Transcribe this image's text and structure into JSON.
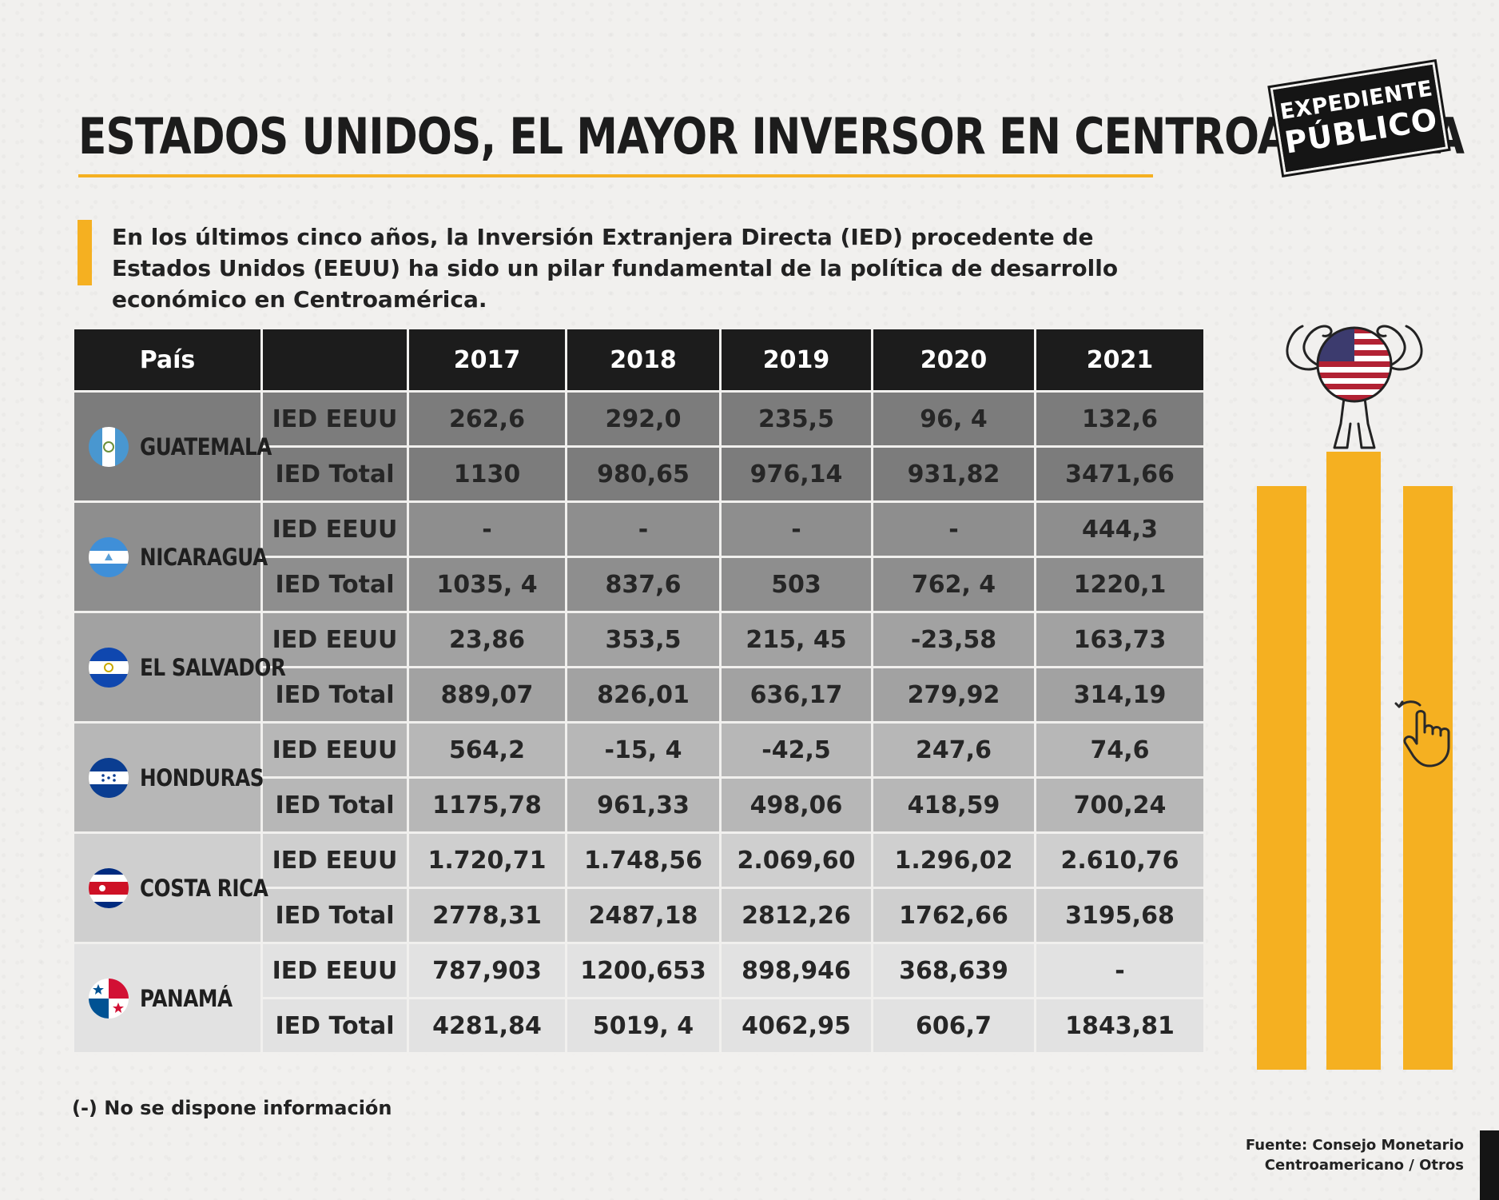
{
  "title": "ESTADOS UNIDOS, EL MAYOR INVERSOR EN CENTROAMÉRICA",
  "logo": {
    "line1": "EXPEDIENTE",
    "line2": "PÚBLICO"
  },
  "intro": "En los últimos cinco años, la Inversión Extranjera Directa (IED) procedente de Estados Unidos (EEUU) ha sido un pilar fundamental de la política de desarrollo económico en Centroamérica.",
  "table": {
    "header": {
      "country": "País",
      "metric": "",
      "years": [
        "2017",
        "2018",
        "2019",
        "2020",
        "2021"
      ]
    },
    "countries": [
      {
        "name": "GUATEMALA",
        "rows": [
          {
            "metric": "IED EEUU",
            "values": [
              "262,6",
              "292,0",
              "235,5",
              "96, 4",
              "132,6"
            ]
          },
          {
            "metric": "IED Total",
            "values": [
              "1130",
              "980,65",
              "976,14",
              "931,82",
              "3471,66"
            ]
          }
        ]
      },
      {
        "name": "NICARAGUA",
        "rows": [
          {
            "metric": "IED EEUU",
            "values": [
              "-",
              "-",
              "-",
              "-",
              "444,3"
            ]
          },
          {
            "metric": "IED Total",
            "values": [
              "1035, 4",
              "837,6",
              "503",
              "762, 4",
              "1220,1"
            ]
          }
        ]
      },
      {
        "name": "EL SALVADOR",
        "rows": [
          {
            "metric": "IED EEUU",
            "values": [
              "23,86",
              "353,5",
              "215, 45",
              "-23,58",
              "163,73"
            ]
          },
          {
            "metric": "IED Total",
            "values": [
              "889,07",
              "826,01",
              "636,17",
              "279,92",
              "314,19"
            ]
          }
        ]
      },
      {
        "name": "HONDURAS",
        "rows": [
          {
            "metric": "IED EEUU",
            "values": [
              "564,2",
              "-15, 4",
              "-42,5",
              "247,6",
              "74,6"
            ]
          },
          {
            "metric": "IED Total",
            "values": [
              "1175,78",
              "961,33",
              "498,06",
              "418,59",
              "700,24"
            ]
          }
        ]
      },
      {
        "name": "COSTA RICA",
        "rows": [
          {
            "metric": "IED EEUU",
            "values": [
              "1.720,71",
              "1.748,56",
              "2.069,60",
              "1.296,02",
              "2.610,76"
            ]
          },
          {
            "metric": "IED Total",
            "values": [
              "2778,31",
              "2487,18",
              "2812,26",
              "1762,66",
              "3195,68"
            ]
          }
        ]
      },
      {
        "name": "PANAMÁ",
        "rows": [
          {
            "metric": "IED EEUU",
            "values": [
              "787,903",
              "1200,653",
              "898,946",
              "368,639",
              "-"
            ]
          },
          {
            "metric": "IED Total",
            "values": [
              "4281,84",
              "5019, 4",
              "4062,95",
              "606,7",
              "1843,81"
            ]
          }
        ]
      }
    ]
  },
  "note": "(-) No se dispone información",
  "source": {
    "line1": "Fuente: Consejo Monetario",
    "line2": "Centroamericano / Otros"
  },
  "colors": {
    "accent": "#f5b021",
    "header_bg": "#1c1c1c",
    "background": "#f1f0ee"
  },
  "icons": [
    "guatemala-flag-icon",
    "nicaragua-flag-icon",
    "el-salvador-flag-icon",
    "honduras-flag-icon",
    "costa-rica-flag-icon",
    "panama-flag-icon",
    "usa-flag-strongman-icon",
    "pointing-hand-icon"
  ]
}
